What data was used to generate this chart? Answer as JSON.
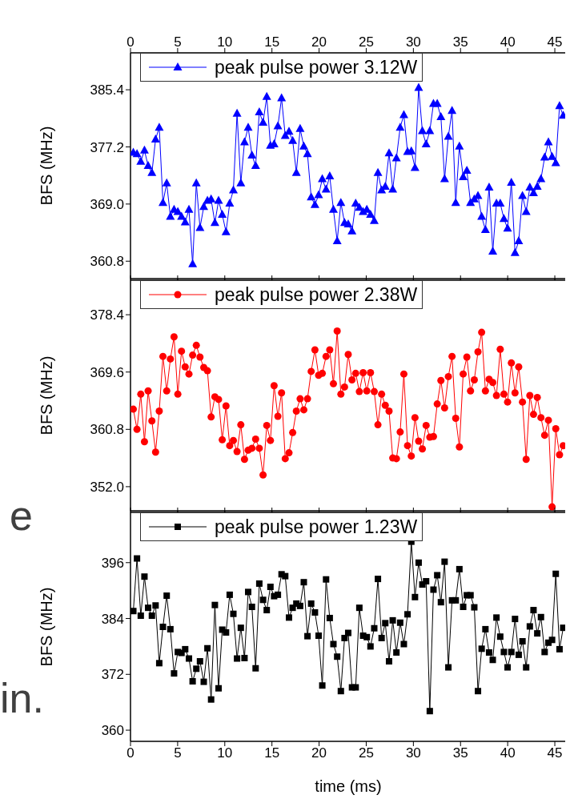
{
  "chart_data": [
    {
      "type": "line",
      "ylabel": "BFS (MHz)",
      "marker": "triangle",
      "legend": "top left",
      "tick_labels": "y",
      "x": [
        0.3,
        0.69,
        1.09,
        1.48,
        1.87,
        2.27,
        2.66,
        3.05,
        3.44,
        3.84,
        4.23,
        4.62,
        5.02,
        5.41,
        5.8,
        6.2,
        6.59,
        6.98,
        7.37,
        7.77,
        8.16,
        8.55,
        8.95,
        9.34,
        9.73,
        10.13,
        10.52,
        10.91,
        11.3,
        11.7,
        12.09,
        12.48,
        12.88,
        13.27,
        13.66,
        14.06,
        14.45,
        14.84,
        15.23,
        15.63,
        16.02,
        16.41,
        16.81,
        17.2,
        17.59,
        17.99,
        18.38,
        18.77,
        19.16,
        19.56,
        19.95,
        20.34,
        20.74,
        21.13,
        21.52,
        21.92,
        22.31,
        22.7,
        23.09,
        23.49,
        23.88,
        24.27,
        24.67,
        25.06,
        25.45,
        25.85,
        26.24,
        26.63,
        27.02,
        27.42,
        27.81,
        28.2,
        28.6,
        28.99,
        29.38,
        29.78,
        30.17,
        30.56,
        30.95,
        31.35,
        31.74,
        32.13,
        32.53,
        32.92,
        33.31,
        33.71,
        34.1,
        34.49,
        34.88,
        35.28,
        35.67,
        36.06,
        36.46,
        36.85,
        37.24,
        37.64,
        38.03,
        38.42,
        38.81,
        39.21,
        39.6,
        39.99,
        40.39,
        40.78,
        41.17,
        41.57,
        41.96,
        42.35,
        42.74,
        43.14,
        43.53,
        43.92,
        44.32,
        44.71,
        45.1,
        45.5,
        45.89
      ],
      "xlim": [
        0,
        46.1
      ],
      "xticks": [
        0,
        5,
        10,
        15,
        20,
        25,
        30,
        35,
        40,
        45
      ],
      "x2lim": [
        0,
        46.1
      ],
      "x2ticks": [
        0,
        5,
        10,
        15,
        20,
        25,
        30,
        35,
        40,
        45
      ],
      "ylim": [
        358.3,
        390.7
      ],
      "yticks": [
        360.8,
        {
          "value": 369,
          "label": "369.0"
        },
        377.2,
        385.4
      ],
      "series": [
        {
          "name": "peak pulse power 3.12W",
          "color": "#0000ff",
          "values": [
            376.4,
            376.2,
            375.1,
            376.7,
            374.5,
            373.5,
            378.3,
            380.0,
            369.2,
            372.0,
            367.2,
            368.2,
            367.9,
            367.2,
            366.4,
            368.2,
            360.4,
            372.0,
            365.6,
            368.6,
            369.5,
            369.7,
            366.3,
            369.5,
            367.5,
            365.0,
            369.1,
            371.0,
            382.0,
            372.0,
            377.9,
            380.0,
            376.0,
            374.5,
            382.2,
            380.7,
            384.4,
            377.4,
            377.6,
            380.2,
            384.2,
            378.8,
            379.4,
            378.1,
            373.5,
            379.8,
            377.3,
            376.2,
            370.0,
            368.9,
            370.3,
            372.6,
            371.1,
            373.0,
            368.2,
            363.7,
            369.2,
            366.3,
            366.1,
            365.1,
            369.1,
            368.5,
            367.9,
            368.2,
            367.5,
            366.6,
            373.5,
            371.0,
            371.5,
            376.3,
            371.1,
            375.6,
            380.0,
            381.8,
            376.5,
            376.6,
            374.2,
            385.7,
            379.5,
            377.6,
            379.5,
            383.4,
            383.4,
            381.5,
            372.6,
            378.7,
            382.4,
            369.2,
            377.3,
            372.9,
            373.8,
            369.2,
            369.7,
            370.2,
            367.2,
            365.3,
            371.4,
            362.2,
            369.1,
            369.1,
            366.9,
            365.5,
            372.1,
            362.0,
            363.7,
            370.2,
            367.9,
            371.4,
            370.6,
            371.5,
            372.6,
            375.7,
            377.9,
            375.8,
            374.9,
            383.1,
            381.7
          ]
        }
      ]
    },
    {
      "type": "line",
      "ylabel": "BFS (MHz)",
      "marker": "circle",
      "legend": "top left",
      "tick_labels": "y",
      "x": [
        0.3,
        0.69,
        1.09,
        1.48,
        1.87,
        2.27,
        2.66,
        3.05,
        3.44,
        3.84,
        4.23,
        4.62,
        5.02,
        5.41,
        5.8,
        6.2,
        6.59,
        6.98,
        7.37,
        7.77,
        8.16,
        8.55,
        8.95,
        9.34,
        9.73,
        10.13,
        10.52,
        10.91,
        11.3,
        11.7,
        12.09,
        12.48,
        12.88,
        13.27,
        13.66,
        14.06,
        14.45,
        14.84,
        15.23,
        15.63,
        16.02,
        16.41,
        16.81,
        17.2,
        17.59,
        17.99,
        18.38,
        18.77,
        19.16,
        19.56,
        19.95,
        20.34,
        20.74,
        21.13,
        21.52,
        21.92,
        22.31,
        22.7,
        23.09,
        23.49,
        23.88,
        24.27,
        24.67,
        25.06,
        25.45,
        25.85,
        26.24,
        26.63,
        27.02,
        27.42,
        27.81,
        28.2,
        28.6,
        28.99,
        29.38,
        29.78,
        30.17,
        30.56,
        30.95,
        31.35,
        31.74,
        32.13,
        32.53,
        32.92,
        33.31,
        33.71,
        34.1,
        34.49,
        34.88,
        35.28,
        35.67,
        36.06,
        36.46,
        36.85,
        37.24,
        37.64,
        38.03,
        38.42,
        38.81,
        39.21,
        39.6,
        39.99,
        40.39,
        40.78,
        41.17,
        41.57,
        41.96,
        42.35,
        42.74,
        43.14,
        43.53,
        43.92,
        44.32,
        44.71,
        45.1,
        45.5,
        45.89
      ],
      "xlim": [
        0,
        46.1
      ],
      "xticks": [
        0,
        5,
        10,
        15,
        20,
        25,
        30,
        35,
        40,
        45
      ],
      "ylim": [
        348.3,
        383.7
      ],
      "yticks": [
        {
          "value": 352,
          "label": "352.0"
        },
        360.8,
        369.6,
        378.4
      ],
      "series": [
        {
          "name": "peak pulse power 2.38W",
          "color": "#ff0000",
          "values": [
            363.9,
            360.8,
            366.2,
            358.9,
            366.7,
            362.1,
            357.3,
            363.6,
            372.0,
            366.7,
            371.6,
            375.0,
            366.2,
            372.8,
            370.4,
            369.3,
            372.2,
            373.7,
            371.9,
            370.3,
            369.8,
            362.7,
            365.8,
            365.4,
            359.2,
            364.4,
            358.3,
            359.1,
            357.4,
            361.5,
            356.2,
            357.6,
            357.9,
            359.3,
            357.9,
            353.8,
            361.4,
            359.1,
            367.5,
            362.8,
            366.4,
            356.3,
            357.2,
            360.3,
            363.6,
            365.5,
            363.8,
            365.5,
            369.7,
            373.0,
            369.1,
            369.4,
            372.0,
            373.0,
            367.8,
            375.9,
            366.2,
            367.3,
            372.3,
            368.4,
            369.4,
            366.6,
            369.5,
            366.7,
            369.5,
            366.6,
            361.5,
            366.2,
            364.5,
            363.6,
            356.4,
            356.3,
            360.4,
            369.3,
            358.3,
            356.7,
            362.6,
            359.0,
            357.8,
            361.4,
            359.6,
            359.7,
            364.7,
            368.3,
            364.1,
            368.9,
            372.0,
            362.5,
            358.1,
            369.3,
            371.9,
            366.7,
            368.4,
            372.7,
            375.7,
            366.7,
            368.5,
            368.0,
            366.0,
            373.1,
            366.2,
            365.0,
            371.0,
            366.4,
            370.4,
            365.0,
            356.2,
            366.0,
            363.1,
            365.7,
            362.6,
            359.9,
            362.2,
            348.9,
            360.9,
            356.9,
            358.3
          ]
        }
      ]
    },
    {
      "type": "line",
      "ylabel": "BFS (MHz)",
      "xlabel": "time (ms)",
      "marker": "square",
      "legend": "top left",
      "annotations": [
        "e",
        "in."
      ],
      "x": [
        0.3,
        0.69,
        1.09,
        1.48,
        1.87,
        2.27,
        2.66,
        3.05,
        3.44,
        3.84,
        4.23,
        4.62,
        5.02,
        5.41,
        5.8,
        6.2,
        6.59,
        6.98,
        7.37,
        7.77,
        8.16,
        8.55,
        8.95,
        9.34,
        9.73,
        10.13,
        10.52,
        10.91,
        11.3,
        11.7,
        12.09,
        12.48,
        12.88,
        13.27,
        13.66,
        14.06,
        14.45,
        14.84,
        15.23,
        15.63,
        16.02,
        16.41,
        16.81,
        17.2,
        17.59,
        17.99,
        18.38,
        18.77,
        19.16,
        19.56,
        19.95,
        20.34,
        20.74,
        21.13,
        21.52,
        21.92,
        22.31,
        22.7,
        23.09,
        23.49,
        23.88,
        24.27,
        24.67,
        25.06,
        25.45,
        25.85,
        26.24,
        26.63,
        27.02,
        27.42,
        27.81,
        28.2,
        28.6,
        28.99,
        29.38,
        29.78,
        30.17,
        30.56,
        30.95,
        31.35,
        31.74,
        32.13,
        32.53,
        32.92,
        33.31,
        33.71,
        34.1,
        34.49,
        34.88,
        35.28,
        35.67,
        36.06,
        36.46,
        36.85,
        37.24,
        37.64,
        38.03,
        38.42,
        38.81,
        39.21,
        39.6,
        39.99,
        40.39,
        40.78,
        41.17,
        41.57,
        41.96,
        42.35,
        42.74,
        43.14,
        43.53,
        43.92,
        44.32,
        44.71,
        45.1,
        45.5,
        45.89
      ],
      "xlim": [
        0,
        46.1
      ],
      "xticks": [
        0,
        5,
        10,
        15,
        20,
        25,
        30,
        35,
        40,
        45
      ],
      "ylim": [
        357.6,
        406.8
      ],
      "yticks": [
        360,
        372,
        384,
        396
      ],
      "series": [
        {
          "name": "peak pulse power 1.23W",
          "color": "#000000",
          "values": [
            385.6,
            396.9,
            384.6,
            393.0,
            386.3,
            384.6,
            386.8,
            374.4,
            382.2,
            388.9,
            381.7,
            372.2,
            376.8,
            376.6,
            377.4,
            375.4,
            370.5,
            373.2,
            374.8,
            370.4,
            377.6,
            366.6,
            386.9,
            369.0,
            381.6,
            381.0,
            389.1,
            385.0,
            375.4,
            382.0,
            375.5,
            389.7,
            386.5,
            373.3,
            391.5,
            388.0,
            385.8,
            390.8,
            388.8,
            389.1,
            393.5,
            393.1,
            384.2,
            386.3,
            387.2,
            386.7,
            391.8,
            380.2,
            387.2,
            385.3,
            380.3,
            369.6,
            392.4,
            384.1,
            378.5,
            375.8,
            368.4,
            379.8,
            380.9,
            369.2,
            369.2,
            386.3,
            380.3,
            380.0,
            378.0,
            381.9,
            392.5,
            379.8,
            383.0,
            374.8,
            383.6,
            376.7,
            383.1,
            378.5,
            384.9,
            400.5,
            388.6,
            396.0,
            391.3,
            392.0,
            364.1,
            390.2,
            393.3,
            387.5,
            396.2,
            373.5,
            387.9,
            387.9,
            394.6,
            386.5,
            389.0,
            389.0,
            386.4,
            368.4,
            377.5,
            381.7,
            376.7,
            375.1,
            384.2,
            380.1,
            376.8,
            373.5,
            376.8,
            383.9,
            376.2,
            379.1,
            373.5,
            382.3,
            385.8,
            380.8,
            384.3,
            376.8,
            378.8,
            379.4,
            393.6,
            377.4,
            382.0
          ]
        }
      ]
    }
  ]
}
